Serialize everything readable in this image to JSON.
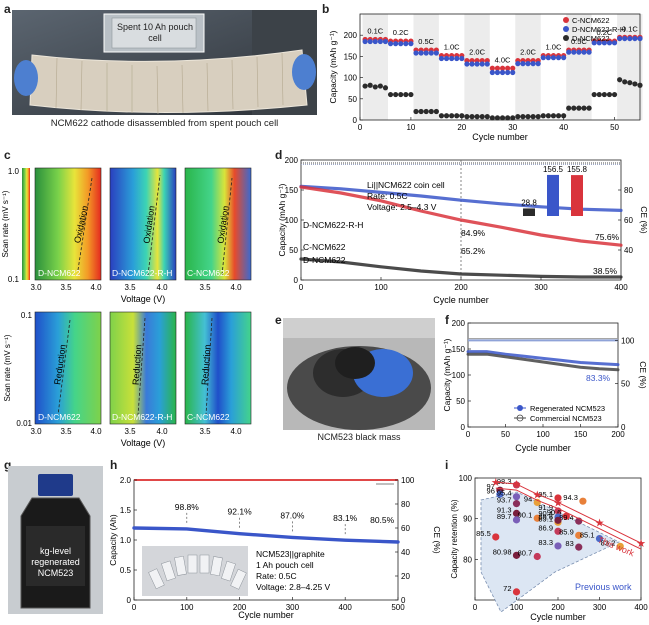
{
  "panel_labels": {
    "a": "a",
    "b": "b",
    "c": "c",
    "d": "d",
    "e": "e",
    "f": "f",
    "g": "g",
    "h": "h",
    "i": "i"
  },
  "panel_a": {
    "inset_label": "Spent 10 Ah pouch cell",
    "caption": "NCM622 cathode disassembled from spent pouch cell"
  },
  "panel_b": {
    "ylabel": "Capacity (mAh g⁻¹)",
    "xlabel": "Cycle number",
    "legend": [
      "C-NCM622",
      "D-NCM622-R-H",
      "D-NCM622"
    ],
    "colors": {
      "C-NCM622": "#d9343c",
      "D-NCM622-R-H": "#3a56c9",
      "D-NCM622": "#2b2b2b"
    },
    "rate_labels": [
      "0.1C",
      "0.2C",
      "0.5C",
      "1.0C",
      "2.0C",
      "4.0C",
      "2.0C",
      "1.0C",
      "0.5C",
      "0.2C",
      "0.1C"
    ],
    "xticks": [
      "0",
      "10",
      "20",
      "30",
      "40",
      "50"
    ],
    "yticks": [
      "0",
      "50",
      "100",
      "150",
      "200"
    ]
  },
  "panel_c": {
    "ylabel": "Scan rate (mV s⁻¹)",
    "xlabel": "Voltage (V)",
    "top_ylabels": [
      "1.0",
      "0.1"
    ],
    "bottom_ylabels": [
      "0.1",
      "0.01"
    ],
    "top_texts": [
      "Oxidation",
      "Oxidation",
      "Oxidation"
    ],
    "bottom_texts": [
      "Reduction",
      "Reduction",
      "Reduction"
    ],
    "sample_names": [
      "D-NCM622",
      "D-NCM622-R-H",
      "C-NCM622"
    ],
    "xticks_first": [
      "3.0",
      "3.5",
      "4.0"
    ],
    "xticks_other": [
      "3.5",
      "4.0"
    ]
  },
  "panel_d": {
    "ylabel": "Capacity (mAh g⁻¹)",
    "y2label": "CE (%)",
    "xlabel": "Cycle number",
    "info": [
      "Li||NCM622 coin cell",
      "Rate: 0.5C",
      "Voltage: 2.5–4.3 V"
    ],
    "series_labels": [
      "D-NCM622-R-H",
      "C-NCM622",
      "D-NCM622"
    ],
    "annotations": [
      "84.9%",
      "65.2%",
      "75.6%",
      "38.5%"
    ],
    "inset_values": [
      "28.8",
      "156.5",
      "155.8"
    ],
    "xticks": [
      "0",
      "100",
      "200",
      "300",
      "400"
    ],
    "yticks": [
      "0",
      "50",
      "100",
      "150",
      "200"
    ],
    "y2ticks": [
      "40",
      "60",
      "80"
    ]
  },
  "panel_e": {
    "caption": "NCM523 black mass"
  },
  "panel_f": {
    "ylabel": "Capacity (mAh g⁻¹)",
    "y2label": "CE (%)",
    "xlabel": "Cycle number",
    "annotation": "83.3%",
    "legend": [
      "Regenerated NCM523",
      "Commercial NCM523"
    ],
    "xticks": [
      "0",
      "50",
      "100",
      "150",
      "200"
    ],
    "yticks": [
      "0",
      "50",
      "100",
      "150",
      "200"
    ],
    "y2ticks": [
      "0",
      "50",
      "100"
    ]
  },
  "panel_g": {
    "label_lines": [
      "kg-level",
      "regenerated",
      "NCM523"
    ]
  },
  "panel_h": {
    "ylabel": "Capacity (Ah)",
    "y2label": "CE (%)",
    "xlabel": "Cycle number",
    "annotations": [
      "98.8%",
      "92.1%",
      "87.0%",
      "83.1%",
      "80.5%"
    ],
    "info": [
      "NCM523||graphite",
      "1 Ah pouch cell",
      "Rate: 0.5C",
      "Voltage: 2.8–4.25 V"
    ],
    "xticks": [
      "0",
      "100",
      "200",
      "300",
      "400",
      "500"
    ],
    "yticks": [
      "0",
      "0.5",
      "1.0",
      "1.5",
      "2.0"
    ],
    "y2ticks": [
      "0",
      "20",
      "40",
      "60",
      "80",
      "100"
    ]
  },
  "panel_i": {
    "ylabel": "Capacity retention (%)",
    "xlabel": "Cycle number",
    "this_work": "This work",
    "previous_work": "Previous work",
    "xticks": [
      "0",
      "100",
      "200",
      "300",
      "400"
    ],
    "yticks": [
      "80",
      "90",
      "100"
    ],
    "labels": [
      "97",
      "98.3",
      "95.1",
      "94.3",
      "96",
      "95.4",
      "93.7",
      "94",
      "91.3",
      "91.9",
      "90.6",
      "90.1",
      "90.4",
      "89.7",
      "89.4",
      "89.1",
      "89.6",
      "86.9",
      "85.5",
      "85.9",
      "85.1",
      "83.3",
      "83",
      "83.2",
      "80.98",
      "80.7",
      "72"
    ]
  },
  "chart_data": [
    {
      "type": "scatter",
      "title": "",
      "xlabel": "Cycle number",
      "ylabel": "Capacity (mAh g⁻¹)",
      "xlim": [
        0,
        55
      ],
      "ylim": [
        0,
        250
      ],
      "rates": [
        "0.1C",
        "0.2C",
        "0.5C",
        "1.0C",
        "2.0C",
        "4.0C",
        "2.0C",
        "1.0C",
        "0.5C",
        "0.2C",
        "0.1C"
      ],
      "series": [
        {
          "name": "C-NCM622",
          "values": [
            190,
            190,
            190,
            190,
            190,
            186,
            186,
            186,
            186,
            186,
            165,
            165,
            165,
            165,
            165,
            152,
            152,
            152,
            152,
            152,
            140,
            140,
            140,
            140,
            140,
            122,
            122,
            122,
            122,
            122,
            140,
            140,
            140,
            140,
            140,
            152,
            152,
            152,
            152,
            152,
            165,
            165,
            165,
            165,
            165,
            186,
            186,
            186,
            186,
            186,
            195,
            195,
            195,
            195,
            195
          ]
        },
        {
          "name": "D-NCM622-R-H",
          "values": [
            185,
            185,
            185,
            185,
            185,
            180,
            180,
            180,
            180,
            180,
            158,
            158,
            158,
            158,
            158,
            145,
            145,
            145,
            145,
            145,
            132,
            132,
            132,
            132,
            132,
            112,
            112,
            112,
            112,
            112,
            133,
            133,
            133,
            133,
            133,
            147,
            147,
            147,
            147,
            147,
            160,
            160,
            160,
            160,
            160,
            182,
            182,
            182,
            182,
            182,
            192,
            192,
            192,
            192,
            192
          ]
        },
        {
          "name": "D-NCM622",
          "values": [
            80,
            82,
            78,
            80,
            76,
            60,
            60,
            60,
            60,
            60,
            20,
            20,
            20,
            20,
            20,
            10,
            10,
            10,
            10,
            10,
            8,
            8,
            8,
            8,
            8,
            5,
            5,
            5,
            5,
            5,
            8,
            8,
            8,
            8,
            8,
            10,
            10,
            10,
            10,
            10,
            28,
            28,
            28,
            28,
            28,
            60,
            60,
            60,
            60,
            60,
            95,
            90,
            88,
            85,
            82
          ]
        }
      ]
    },
    {
      "type": "line",
      "title": "",
      "xlabel": "Cycle number",
      "ylabel": "Capacity (mAh g⁻¹)",
      "xlim": [
        0,
        400
      ],
      "ylim": [
        0,
        200
      ],
      "x": [
        0,
        50,
        100,
        150,
        200,
        250,
        300,
        350,
        400
      ],
      "series": [
        {
          "name": "D-NCM622-R-H",
          "values": [
            156,
            152,
            146,
            140,
            133,
            127,
            122,
            118,
            116
          ]
        },
        {
          "name": "C-NCM622",
          "values": [
            155,
            145,
            132,
            115,
            100,
            88,
            75,
            65,
            58
          ]
        },
        {
          "name": "D-NCM622",
          "values": [
            35,
            30,
            22,
            15,
            10,
            8,
            6,
            5,
            5
          ]
        }
      ],
      "inset": {
        "categories": [
          "D-NCM622",
          "D-NCM622-R-H",
          "C-NCM622"
        ],
        "values": [
          28.8,
          156.5,
          155.8
        ]
      }
    },
    {
      "type": "line",
      "title": "",
      "xlabel": "Cycle number",
      "ylabel": "Capacity (mAh g⁻¹)",
      "xlim": [
        0,
        200
      ],
      "ylim": [
        0,
        200
      ],
      "x": [
        0,
        25,
        50,
        75,
        100,
        125,
        150,
        175,
        200
      ],
      "series": [
        {
          "name": "Regenerated NCM523",
          "values": [
            145,
            145,
            140,
            136,
            132,
            128,
            124,
            122,
            120
          ]
        },
        {
          "name": "Commercial NCM523",
          "values": [
            140,
            140,
            135,
            130,
            125,
            120,
            115,
            112,
            110
          ]
        }
      ]
    },
    {
      "type": "line",
      "title": "",
      "xlabel": "Cycle number",
      "ylabel": "Capacity (Ah)",
      "xlim": [
        0,
        500
      ],
      "ylim": [
        0,
        2.0
      ],
      "x": [
        0,
        100,
        200,
        300,
        400,
        500
      ],
      "series": [
        {
          "values": [
            1.2,
            1.185,
            1.105,
            1.044,
            0.997,
            0.966
          ]
        }
      ]
    },
    {
      "type": "scatter",
      "title": "",
      "xlabel": "Cycle number",
      "ylabel": "Capacity retention (%)",
      "xlim": [
        0,
        400
      ],
      "ylim": [
        70,
        100
      ],
      "points": [
        {
          "x": 60,
          "y": 97
        },
        {
          "x": 100,
          "y": 98.3
        },
        {
          "x": 200,
          "y": 95.1
        },
        {
          "x": 260,
          "y": 94.3
        },
        {
          "x": 60,
          "y": 96
        },
        {
          "x": 100,
          "y": 95.4
        },
        {
          "x": 100,
          "y": 93.7
        },
        {
          "x": 150,
          "y": 94
        },
        {
          "x": 100,
          "y": 91.3
        },
        {
          "x": 200,
          "y": 91.9
        },
        {
          "x": 220,
          "y": 90.6
        },
        {
          "x": 150,
          "y": 90.1
        },
        {
          "x": 200,
          "y": 90.4
        },
        {
          "x": 100,
          "y": 89.7
        },
        {
          "x": 250,
          "y": 89.4
        },
        {
          "x": 200,
          "y": 89.1
        },
        {
          "x": 200,
          "y": 89.6
        },
        {
          "x": 200,
          "y": 86.9
        },
        {
          "x": 50,
          "y": 85.5
        },
        {
          "x": 250,
          "y": 85.9
        },
        {
          "x": 300,
          "y": 85.1
        },
        {
          "x": 200,
          "y": 83.3
        },
        {
          "x": 250,
          "y": 83
        },
        {
          "x": 350,
          "y": 83.2
        },
        {
          "x": 100,
          "y": 80.98
        },
        {
          "x": 150,
          "y": 80.7
        },
        {
          "x": 100,
          "y": 72
        }
      ]
    }
  ]
}
